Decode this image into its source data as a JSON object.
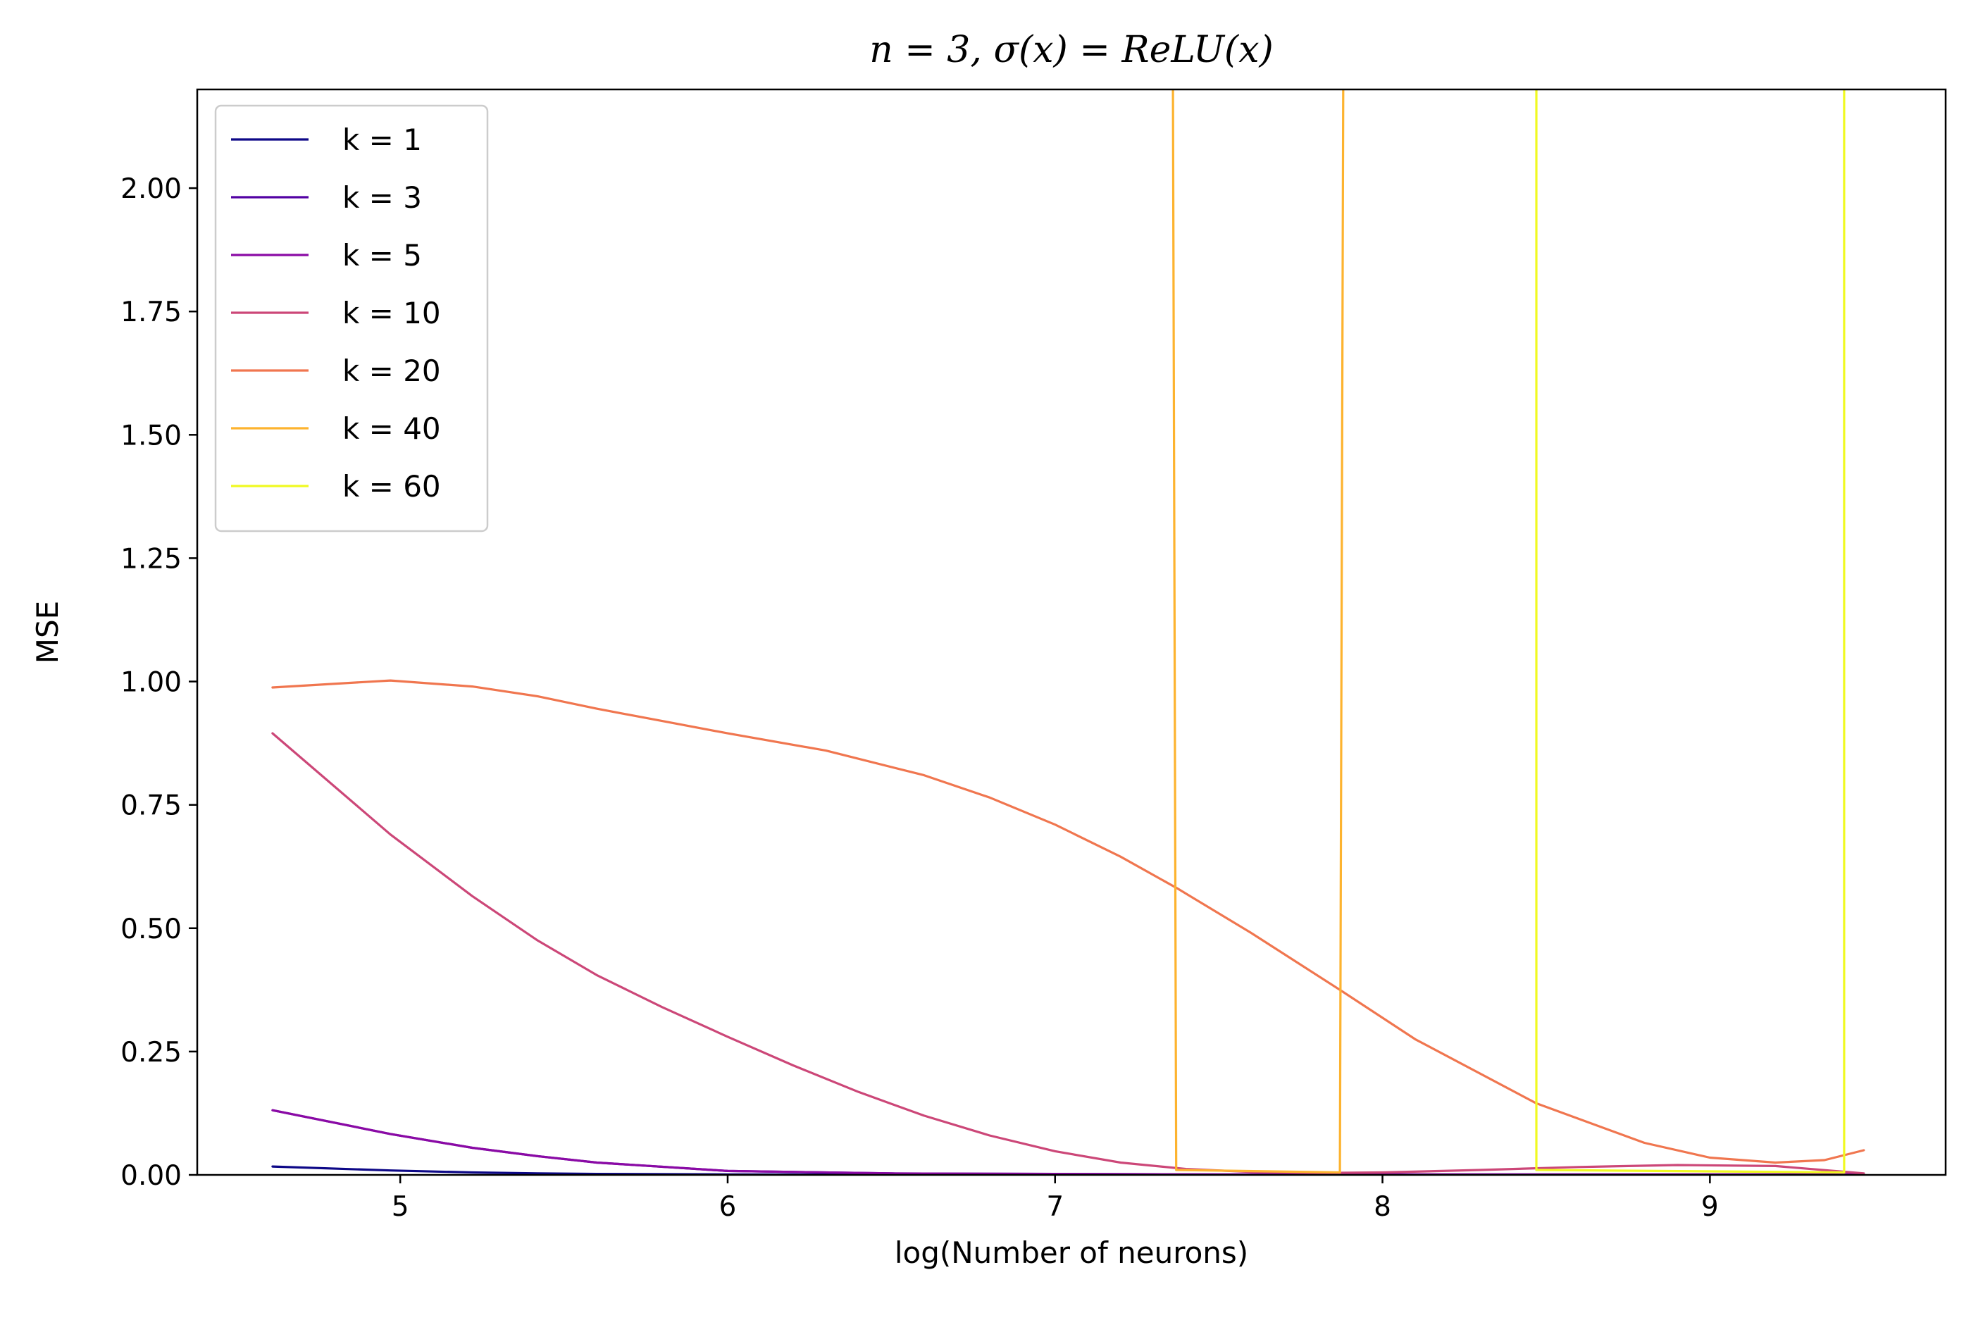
{
  "chart_data": {
    "type": "line",
    "title": "n = 3, σ(x) = ReLU(x)",
    "xlabel": "log(Number of neurons)",
    "ylabel": "MSE",
    "xlim": [
      4.38,
      9.72
    ],
    "ylim": [
      0.0,
      2.2
    ],
    "xticks": [
      5,
      6,
      7,
      8,
      9
    ],
    "yticks": [
      0.0,
      0.25,
      0.5,
      0.75,
      1.0,
      1.25,
      1.5,
      1.75,
      2.0
    ],
    "xtick_labels": [
      "5",
      "6",
      "7",
      "8",
      "9"
    ],
    "ytick_labels": [
      "0.00",
      "0.25",
      "0.50",
      "0.75",
      "1.00",
      "1.25",
      "1.50",
      "1.75",
      "2.00"
    ],
    "grid": false,
    "legend_position": "upper-left",
    "series": [
      {
        "name": "k = 1",
        "color": "#0d0887",
        "x": [
          4.61,
          4.97,
          5.22,
          5.42,
          5.6,
          6.0,
          6.5,
          7.0,
          7.5,
          8.0,
          8.5,
          9.0,
          9.47
        ],
        "y": [
          0.017,
          0.009,
          0.005,
          0.003,
          0.002,
          0.001,
          0.0005,
          0.0003,
          0.0002,
          0.0002,
          0.0001,
          0.0001,
          0.0001
        ]
      },
      {
        "name": "k = 3",
        "color": "#5302a3",
        "x": [
          4.61,
          4.97,
          5.22,
          5.42,
          5.6,
          6.0,
          6.5,
          7.0,
          7.5,
          8.0,
          8.5,
          9.0,
          9.47
        ],
        "y": [
          0.131,
          0.083,
          0.055,
          0.038,
          0.025,
          0.008,
          0.003,
          0.002,
          0.001,
          0.001,
          0.001,
          0.001,
          0.001
        ]
      },
      {
        "name": "k = 5",
        "color": "#8b0aa5",
        "x": [
          4.61,
          4.97,
          5.22,
          5.42,
          5.6,
          6.0,
          6.5,
          7.0,
          7.5,
          8.0,
          8.5,
          9.0,
          9.47
        ],
        "y": [
          0.131,
          0.083,
          0.055,
          0.038,
          0.025,
          0.008,
          0.003,
          0.002,
          0.001,
          0.001,
          0.001,
          0.001,
          0.001
        ]
      },
      {
        "name": "k = 10",
        "color": "#cc4778",
        "x": [
          4.61,
          4.97,
          5.22,
          5.42,
          5.6,
          5.8,
          6.0,
          6.2,
          6.4,
          6.6,
          6.8,
          7.0,
          7.2,
          7.4,
          7.6,
          7.8,
          8.0,
          8.3,
          8.6,
          8.9,
          9.2,
          9.47
        ],
        "y": [
          0.895,
          0.69,
          0.565,
          0.475,
          0.405,
          0.34,
          0.28,
          0.222,
          0.168,
          0.12,
          0.08,
          0.048,
          0.025,
          0.012,
          0.006,
          0.004,
          0.005,
          0.01,
          0.016,
          0.02,
          0.018,
          0.003
        ]
      },
      {
        "name": "k = 20",
        "color": "#f0764f",
        "x": [
          4.61,
          4.97,
          5.22,
          5.42,
          5.6,
          5.8,
          6.0,
          6.3,
          6.6,
          6.8,
          7.0,
          7.2,
          7.37,
          7.6,
          7.87,
          8.1,
          8.47,
          8.8,
          9.0,
          9.2,
          9.35,
          9.47
        ],
        "y": [
          0.988,
          1.002,
          0.99,
          0.97,
          0.945,
          0.92,
          0.895,
          0.86,
          0.81,
          0.765,
          0.71,
          0.645,
          0.582,
          0.49,
          0.375,
          0.275,
          0.145,
          0.065,
          0.035,
          0.025,
          0.03,
          0.05
        ]
      },
      {
        "name": "k = 40",
        "color": "#fdb32f",
        "x": [
          7.36,
          7.37,
          7.87,
          7.88
        ],
        "y": [
          2.2,
          0.01,
          0.005,
          2.2
        ]
      },
      {
        "name": "k = 60",
        "color": "#f0f921",
        "x": [
          8.47,
          8.47,
          9.41,
          9.41
        ],
        "y": [
          2.2,
          0.01,
          0.005,
          2.2
        ]
      }
    ]
  }
}
